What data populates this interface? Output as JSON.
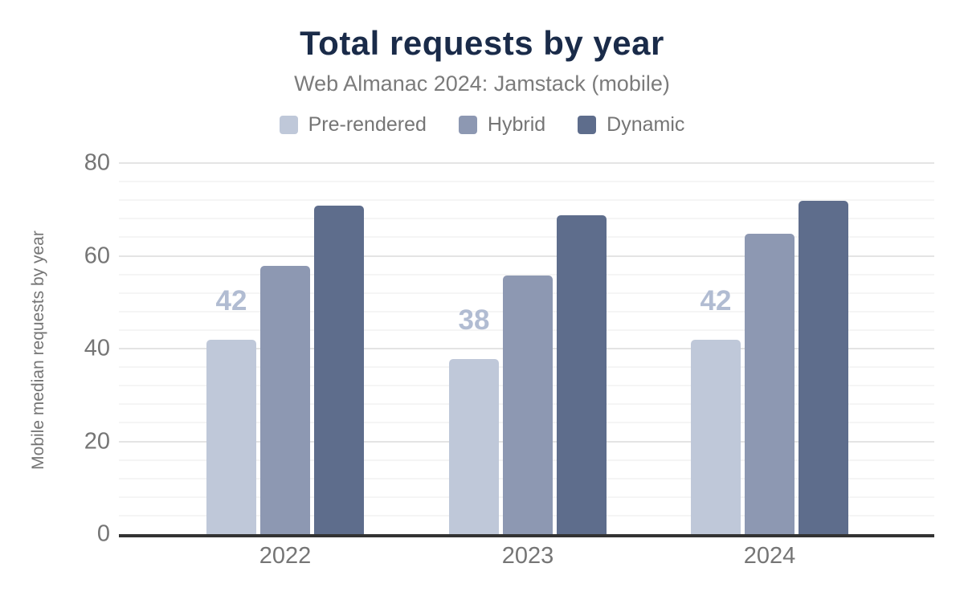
{
  "header": {
    "title": "Total requests by year",
    "subtitle": "Web Almanac 2024: Jamstack (mobile)"
  },
  "colors": {
    "title_text": "#1a2b49",
    "subtitle_text": "#7b7b7b",
    "axis_text": "#757575",
    "axis_line": "#333333",
    "gridline_major": "#e4e4e4",
    "gridline_minor": "#f5f5f5",
    "bar_value_label": "#b1bcd2"
  },
  "chart_data": {
    "type": "bar",
    "title": "Total requests by year",
    "subtitle": "Web Almanac 2024: Jamstack (mobile)",
    "categories": [
      "2022",
      "2023",
      "2024"
    ],
    "series": [
      {
        "name": "Pre-rendered",
        "color": "#bfc8d9",
        "values": [
          42,
          38,
          42
        ],
        "data_labels": [
          "42",
          "38",
          "42"
        ]
      },
      {
        "name": "Hybrid",
        "color": "#8d98b2",
        "values": [
          58,
          56,
          65
        ],
        "data_labels": null
      },
      {
        "name": "Dynamic",
        "color": "#5e6d8c",
        "values": [
          71,
          69,
          72
        ],
        "data_labels": null
      }
    ],
    "xlabel": "",
    "ylabel": "Mobile median requests by year",
    "ylim": [
      0,
      80
    ],
    "yticks": [
      0,
      20,
      40,
      60,
      80
    ],
    "minor_grid_step": 4,
    "grid": true,
    "legend_position": "top"
  }
}
